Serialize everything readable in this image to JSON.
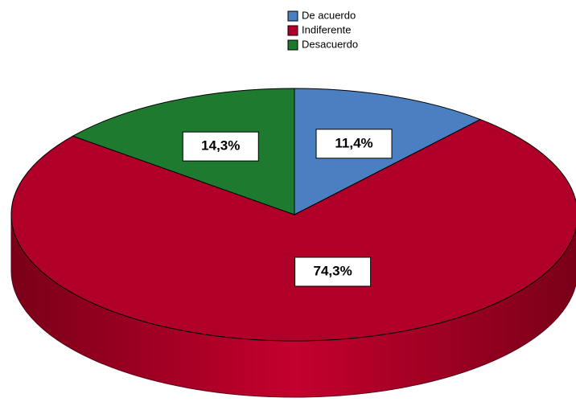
{
  "chart_data": {
    "type": "pie",
    "categories": [
      "De acuerdo",
      "Indiferente",
      "Desacuerdo"
    ],
    "values": [
      11.4,
      74.3,
      14.3
    ],
    "value_labels": [
      "11,4%",
      "74,3%",
      "14,3%"
    ],
    "colors": [
      "#4a7fc1",
      "#b0002a",
      "#1e7a2e"
    ],
    "legend": "top"
  }
}
